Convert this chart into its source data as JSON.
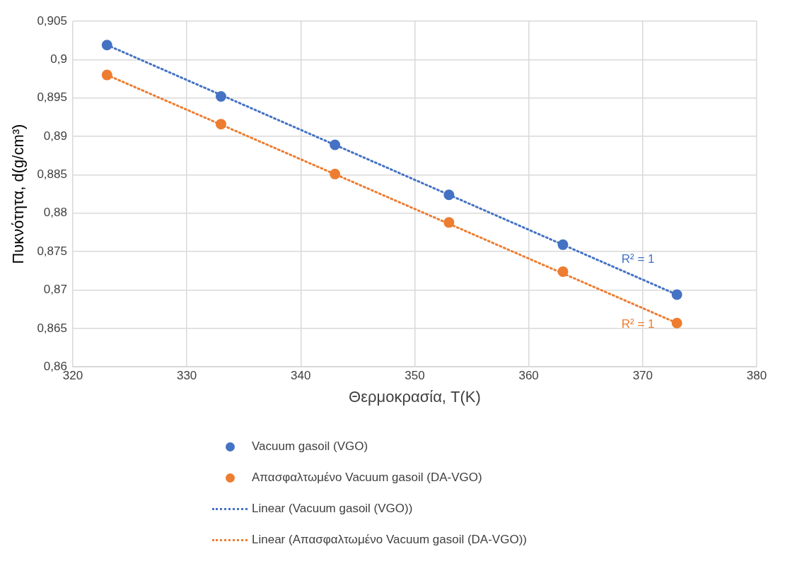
{
  "chart_data": {
    "type": "scatter",
    "xlabel": "Θερμοκρασία, T(K)",
    "ylabel": "Πυκνότητα, d(g/cm³)",
    "x": [
      323,
      333,
      343,
      353,
      363,
      373
    ],
    "series": [
      {
        "name": "Vacuum gasoil (VGO)",
        "color": "#4472c4",
        "marker": "circle",
        "values": [
          0.9019,
          0.8952,
          0.8889,
          0.8824,
          0.8759,
          0.8694
        ]
      },
      {
        "name": "Απασφαλτωμένο  Vacuum gasoil (DA-VGO)",
        "color": "#ed7d31",
        "marker": "circle",
        "values": [
          0.898,
          0.8916,
          0.8851,
          0.8788,
          0.8724,
          0.8657
        ]
      },
      {
        "name": "Linear (Vacuum gasoil (VGO))",
        "type": "line",
        "color": "#4472c4",
        "marker": "none",
        "line_style": "dotted",
        "values": [
          0.9019,
          null,
          null,
          null,
          null,
          0.8694
        ]
      },
      {
        "name": "Linear (Απασφαλτωμένο  Vacuum gasoil (DA-VGO))",
        "type": "line",
        "color": "#ed7d31",
        "marker": "none",
        "line_style": "dotted",
        "values": [
          0.898,
          null,
          null,
          null,
          null,
          0.8657
        ]
      }
    ],
    "annotations": [
      "R² = 1",
      "R² = 1"
    ],
    "xlim": [
      320,
      380
    ],
    "xticks": [
      320,
      330,
      340,
      350,
      360,
      370,
      380
    ],
    "ylim": [
      0.86,
      0.905
    ],
    "yticks": [
      {
        "value": 0.86,
        "label": "0,86"
      },
      {
        "value": 0.865,
        "label": "0,865"
      },
      {
        "value": 0.87,
        "label": "0,87"
      },
      {
        "value": 0.875,
        "label": "0,875"
      },
      {
        "value": 0.88,
        "label": "0,88"
      },
      {
        "value": 0.885,
        "label": "0,885"
      },
      {
        "value": 0.89,
        "label": "0,89"
      },
      {
        "value": 0.895,
        "label": "0,895"
      },
      {
        "value": 0.9,
        "label": "0,9"
      },
      {
        "value": 0.905,
        "label": "0,905"
      }
    ],
    "grid": true,
    "legend": "bottom"
  }
}
